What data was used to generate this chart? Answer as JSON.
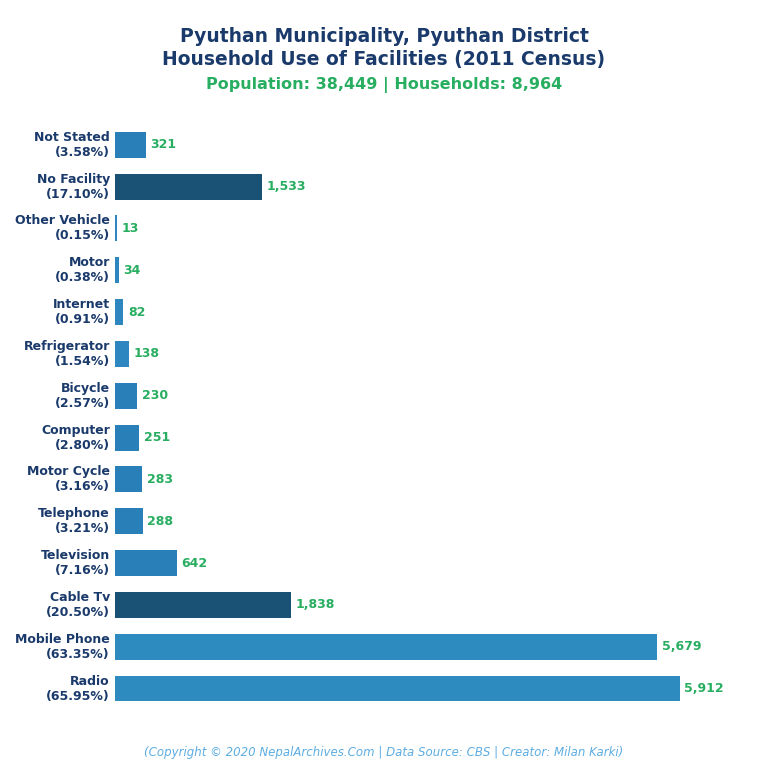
{
  "title_line1": "Pyuthan Municipality, Pyuthan District",
  "title_line2": "Household Use of Facilities (2011 Census)",
  "subtitle": "Population: 38,449 | Households: 8,964",
  "copyright": "(Copyright © 2020 NepalArchives.Com | Data Source: CBS | Creator: Milan Karki)",
  "categories": [
    "Not Stated\n(3.58%)",
    "No Facility\n(17.10%)",
    "Other Vehicle\n(0.15%)",
    "Motor\n(0.38%)",
    "Internet\n(0.91%)",
    "Refrigerator\n(1.54%)",
    "Bicycle\n(2.57%)",
    "Computer\n(2.80%)",
    "Motor Cycle\n(3.16%)",
    "Telephone\n(3.21%)",
    "Television\n(7.16%)",
    "Cable Tv\n(20.50%)",
    "Mobile Phone\n(63.35%)",
    "Radio\n(65.95%)"
  ],
  "values": [
    321,
    1533,
    13,
    34,
    82,
    138,
    230,
    251,
    283,
    288,
    642,
    1838,
    5679,
    5912
  ],
  "bar_colors": [
    "#2980b9",
    "#1a5276",
    "#2e86c1",
    "#2e86c1",
    "#2e86c1",
    "#2e86c1",
    "#2980b9",
    "#2980b9",
    "#2980b9",
    "#2980b9",
    "#2980b9",
    "#1a5276",
    "#2e8bc0",
    "#2e8bc0"
  ],
  "title_color": "#1a3a6b",
  "subtitle_color": "#27ae60",
  "value_color": "#27ae60",
  "copyright_color": "#5dade2",
  "background_color": "#ffffff",
  "title_fontsize": 13.5,
  "subtitle_fontsize": 11.5,
  "label_fontsize": 9,
  "value_fontsize": 9,
  "copyright_fontsize": 8.5
}
